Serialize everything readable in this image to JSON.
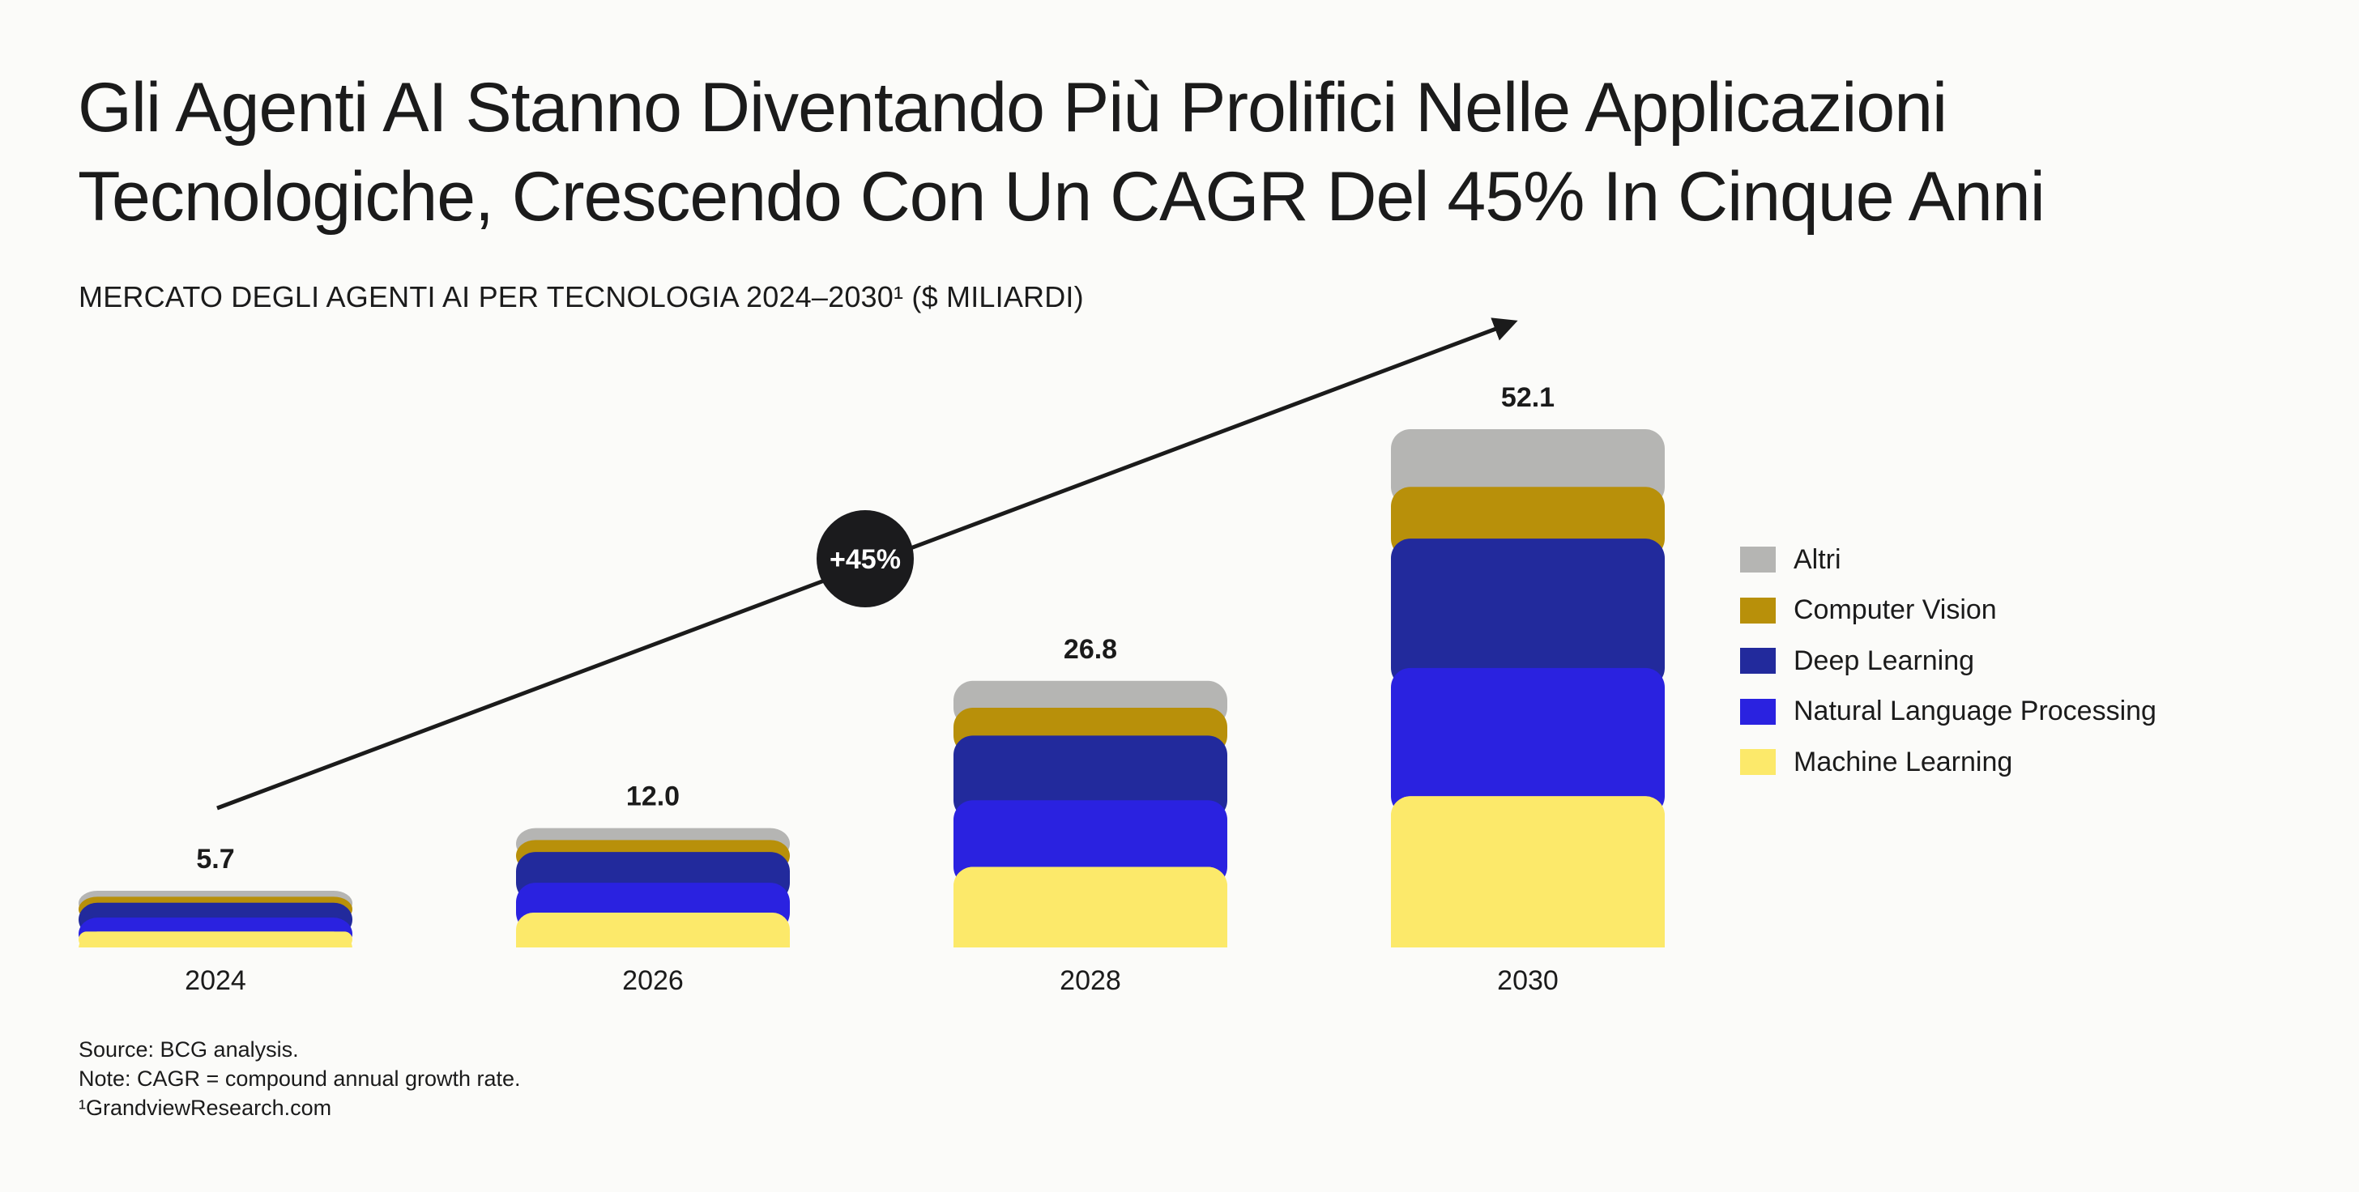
{
  "title": "Gli Agenti AI Stanno Diventando Più Prolifici Nelle Applicazioni Tecnologiche, Crescendo Con Un CAGR Del 45% In Cinque Anni",
  "subtitle": "MERCATO DEGLI AGENTI AI PER TECNOLOGIA 2024–2030¹ ($ MILIARDI)",
  "cagr_label": "+45%",
  "chart_data": {
    "type": "bar",
    "stacked": true,
    "title": "MERCATO DEGLI AGENTI AI PER TECNOLOGIA 2024–2030¹ ($ MILIARDI)",
    "categories": [
      "2024",
      "2026",
      "2028",
      "2030"
    ],
    "totals": [
      5.7,
      12.0,
      26.8,
      52.1
    ],
    "total_labels": [
      "5.7",
      "12.0",
      "26.8",
      "52.1"
    ],
    "series": [
      {
        "name": "Machine Learning",
        "color": "#fce96a",
        "values": [
          1.6,
          3.5,
          8.1,
          15.2
        ]
      },
      {
        "name": "Natural Language Processing",
        "color": "#2a22e0",
        "values": [
          1.4,
          3.0,
          6.7,
          12.9
        ]
      },
      {
        "name": "Deep Learning",
        "color": "#222a9c",
        "values": [
          1.5,
          3.1,
          6.5,
          13.0
        ]
      },
      {
        "name": "Computer Vision",
        "color": "#b8900a",
        "values": [
          0.6,
          1.2,
          2.8,
          5.2
        ]
      },
      {
        "name": "Altri",
        "color": "#b5b5b3",
        "values": [
          0.6,
          1.2,
          2.7,
          5.8
        ]
      }
    ],
    "legend_order": [
      "Altri",
      "Computer Vision",
      "Deep Learning",
      "Natural Language Processing",
      "Machine Learning"
    ],
    "legend_position": "right",
    "ylim": [
      0,
      52.1
    ]
  },
  "notes": [
    "Source: BCG analysis.",
    "Note: CAGR = compound annual growth rate.",
    "¹GrandviewResearch.com"
  ]
}
